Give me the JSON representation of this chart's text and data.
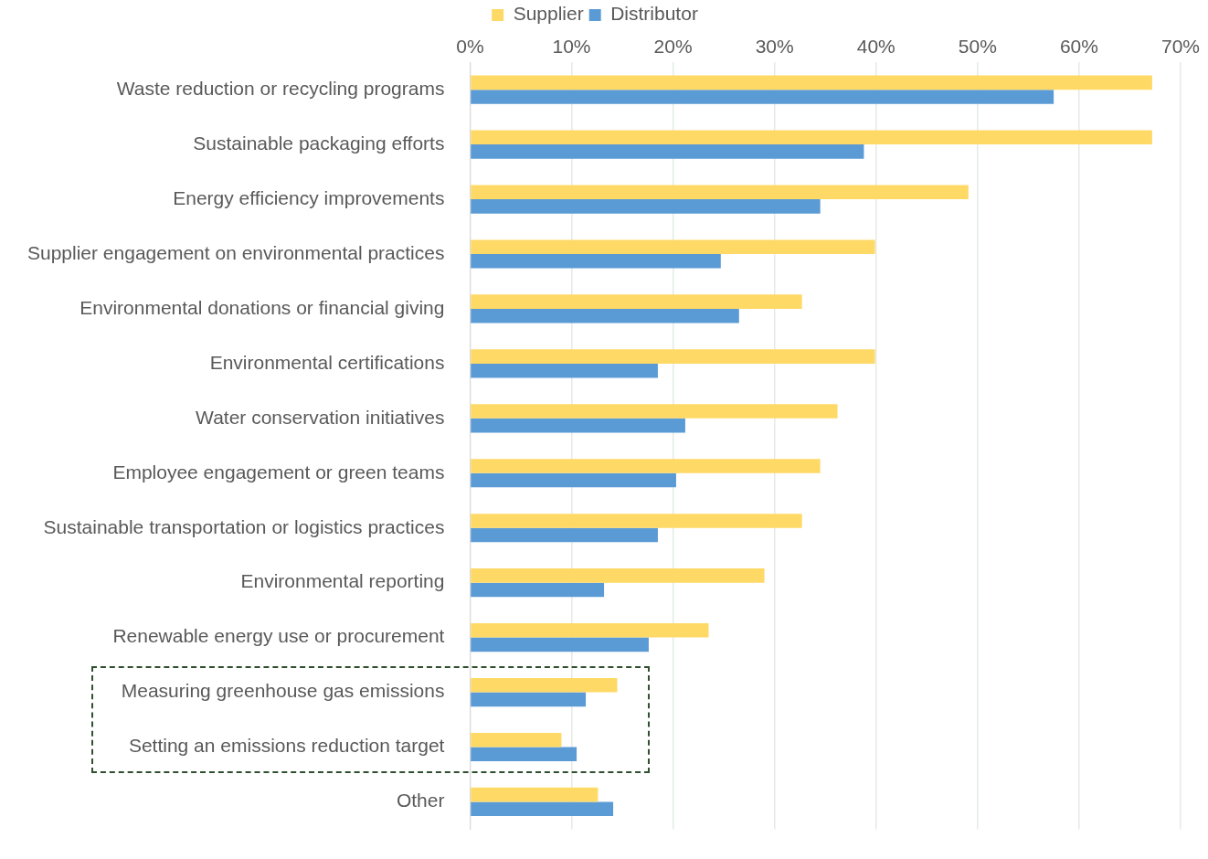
{
  "chart_data": {
    "type": "bar",
    "orientation": "horizontal",
    "categories": [
      "Waste reduction or recycling programs",
      "Sustainable packaging efforts",
      "Energy efficiency improvements",
      "Supplier engagement on environmental practices",
      "Environmental donations or financial giving",
      "Environmental certifications",
      "Water conservation initiatives",
      "Employee engagement or green teams",
      "Sustainable transportation or logistics practices",
      "Environmental reporting",
      "Renewable energy use or procurement",
      "Measuring greenhouse gas emissions",
      "Setting an emissions reduction target",
      "Other"
    ],
    "series": [
      {
        "name": "Supplier",
        "color": "#ffd966",
        "values": [
          67.2,
          67.2,
          49.1,
          39.9,
          32.7,
          39.9,
          36.2,
          34.5,
          32.7,
          29.0,
          23.5,
          14.5,
          9.0,
          12.6
        ]
      },
      {
        "name": "Distributor",
        "color": "#5b9bd5",
        "values": [
          57.5,
          38.8,
          34.5,
          24.7,
          26.5,
          18.5,
          21.2,
          20.3,
          18.5,
          13.2,
          17.6,
          11.4,
          10.5,
          14.1
        ]
      }
    ],
    "xlim": [
      0,
      70
    ],
    "xticks": [
      {
        "value": 0,
        "label": "0%"
      },
      {
        "value": 10,
        "label": "10%"
      },
      {
        "value": 20,
        "label": "20%"
      },
      {
        "value": 30,
        "label": "30%"
      },
      {
        "value": 40,
        "label": "40%"
      },
      {
        "value": 50,
        "label": "50%"
      },
      {
        "value": 60,
        "label": "60%"
      },
      {
        "value": 70,
        "label": "70%"
      }
    ],
    "grid": "x",
    "legend": "top"
  }
}
